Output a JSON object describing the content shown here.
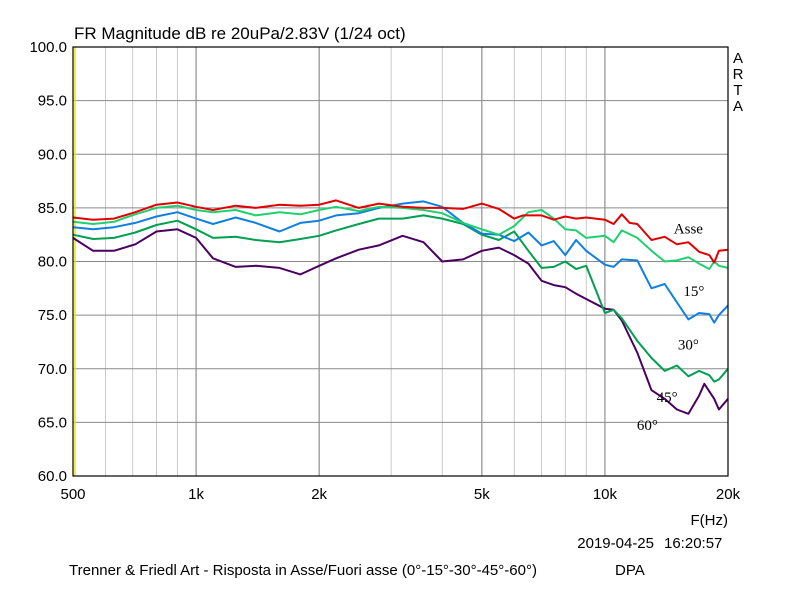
{
  "chart_data": {
    "type": "line",
    "title": "FR Magnitude dB re 20uPa/2.83V (1/24 oct)",
    "xlabel": "F(Hz)",
    "ylabel": "",
    "xscale": "log",
    "xlim": [
      500,
      20000
    ],
    "ylim": [
      60,
      100
    ],
    "grid": true,
    "x_ticks": [
      500,
      1000,
      2000,
      5000,
      10000,
      20000
    ],
    "x_tick_labels": [
      "500",
      "1k",
      "2k",
      "5k",
      "10k",
      "20k"
    ],
    "y_ticks": [
      60,
      65,
      70,
      75,
      80,
      85,
      90,
      95,
      100
    ],
    "y_tick_labels": [
      "60.0",
      "65.0",
      "70.0",
      "75.0",
      "80.0",
      "85.0",
      "90.0",
      "95.0",
      "100.0"
    ],
    "brand": "ARTA",
    "date": "2019-04-25",
    "time": "16:20:57",
    "caption": "Trenner & Friedl Art - Risposta in Asse/Fuori asse (0°-15°-30°-45°-60°)",
    "caption_suffix": "DPA",
    "series": [
      {
        "name": "Asse",
        "color": "#e00000",
        "label_at": [
          16000,
          82.6
        ],
        "points": [
          [
            500,
            84.1
          ],
          [
            560,
            83.9
          ],
          [
            630,
            84.0
          ],
          [
            710,
            84.6
          ],
          [
            800,
            85.3
          ],
          [
            900,
            85.5
          ],
          [
            1000,
            85.1
          ],
          [
            1100,
            84.8
          ],
          [
            1250,
            85.2
          ],
          [
            1400,
            85.0
          ],
          [
            1600,
            85.3
          ],
          [
            1800,
            85.2
          ],
          [
            2000,
            85.3
          ],
          [
            2200,
            85.7
          ],
          [
            2500,
            85.0
          ],
          [
            2800,
            85.4
          ],
          [
            3200,
            85.1
          ],
          [
            3600,
            85.0
          ],
          [
            4000,
            85.0
          ],
          [
            4500,
            84.9
          ],
          [
            5000,
            85.4
          ],
          [
            5500,
            84.9
          ],
          [
            6000,
            84.0
          ],
          [
            6300,
            84.3
          ],
          [
            7000,
            84.3
          ],
          [
            7500,
            83.9
          ],
          [
            8000,
            84.2
          ],
          [
            8500,
            84.0
          ],
          [
            9000,
            84.1
          ],
          [
            10000,
            83.9
          ],
          [
            10500,
            83.5
          ],
          [
            11000,
            84.4
          ],
          [
            11500,
            83.6
          ],
          [
            12000,
            83.5
          ],
          [
            13000,
            82.0
          ],
          [
            14000,
            82.3
          ],
          [
            15000,
            81.6
          ],
          [
            16000,
            81.8
          ],
          [
            17000,
            80.9
          ],
          [
            18000,
            80.6
          ],
          [
            18500,
            79.9
          ],
          [
            19000,
            81.0
          ],
          [
            20000,
            81.1
          ]
        ]
      },
      {
        "name": "15°",
        "color": "#20d070",
        "label_at": [
          16500,
          76.8
        ],
        "points": [
          [
            500,
            83.7
          ],
          [
            560,
            83.5
          ],
          [
            630,
            83.7
          ],
          [
            710,
            84.4
          ],
          [
            800,
            85.0
          ],
          [
            900,
            85.2
          ],
          [
            1000,
            84.8
          ],
          [
            1100,
            84.6
          ],
          [
            1250,
            84.8
          ],
          [
            1400,
            84.3
          ],
          [
            1600,
            84.6
          ],
          [
            1800,
            84.4
          ],
          [
            2000,
            84.8
          ],
          [
            2200,
            85.1
          ],
          [
            2500,
            84.7
          ],
          [
            2800,
            85.1
          ],
          [
            3200,
            85.0
          ],
          [
            3600,
            84.8
          ],
          [
            4000,
            84.5
          ],
          [
            4500,
            83.6
          ],
          [
            5000,
            83.0
          ],
          [
            5500,
            82.5
          ],
          [
            6000,
            83.3
          ],
          [
            6500,
            84.6
          ],
          [
            7000,
            84.8
          ],
          [
            7500,
            84.0
          ],
          [
            8000,
            83.0
          ],
          [
            8500,
            82.9
          ],
          [
            9000,
            82.2
          ],
          [
            10000,
            82.4
          ],
          [
            10500,
            81.8
          ],
          [
            11000,
            82.9
          ],
          [
            12000,
            82.2
          ],
          [
            13000,
            81.0
          ],
          [
            14000,
            80.0
          ],
          [
            15000,
            80.1
          ],
          [
            16000,
            80.4
          ],
          [
            17000,
            79.8
          ],
          [
            18000,
            79.3
          ],
          [
            18500,
            80.0
          ],
          [
            19000,
            79.6
          ],
          [
            20000,
            79.4
          ]
        ]
      },
      {
        "name": "30°",
        "color": "#1080e0",
        "label_at": [
          16000,
          71.8
        ],
        "points": [
          [
            500,
            83.2
          ],
          [
            560,
            83.0
          ],
          [
            630,
            83.2
          ],
          [
            710,
            83.6
          ],
          [
            800,
            84.2
          ],
          [
            900,
            84.6
          ],
          [
            1000,
            84.0
          ],
          [
            1100,
            83.5
          ],
          [
            1250,
            84.1
          ],
          [
            1400,
            83.6
          ],
          [
            1600,
            82.8
          ],
          [
            1800,
            83.6
          ],
          [
            2000,
            83.8
          ],
          [
            2200,
            84.3
          ],
          [
            2500,
            84.5
          ],
          [
            2800,
            85.0
          ],
          [
            3200,
            85.4
          ],
          [
            3600,
            85.6
          ],
          [
            4000,
            85.1
          ],
          [
            4500,
            83.6
          ],
          [
            5000,
            82.6
          ],
          [
            5500,
            82.5
          ],
          [
            6000,
            81.9
          ],
          [
            6500,
            82.7
          ],
          [
            7000,
            81.5
          ],
          [
            7500,
            81.9
          ],
          [
            8000,
            80.6
          ],
          [
            8500,
            82.0
          ],
          [
            9000,
            81.0
          ],
          [
            10000,
            79.7
          ],
          [
            10500,
            79.5
          ],
          [
            11000,
            80.2
          ],
          [
            12000,
            80.1
          ],
          [
            13000,
            77.5
          ],
          [
            14000,
            77.9
          ],
          [
            15000,
            76.2
          ],
          [
            16000,
            74.6
          ],
          [
            17000,
            75.2
          ],
          [
            18000,
            75.1
          ],
          [
            18500,
            74.3
          ],
          [
            19000,
            75.0
          ],
          [
            20000,
            75.9
          ]
        ]
      },
      {
        "name": "45°",
        "color": "#00a050",
        "label_at": [
          14200,
          66.9
        ],
        "points": [
          [
            500,
            82.5
          ],
          [
            560,
            82.1
          ],
          [
            630,
            82.2
          ],
          [
            710,
            82.7
          ],
          [
            800,
            83.4
          ],
          [
            900,
            83.8
          ],
          [
            1000,
            83.0
          ],
          [
            1100,
            82.2
          ],
          [
            1250,
            82.3
          ],
          [
            1400,
            82.0
          ],
          [
            1600,
            81.8
          ],
          [
            1800,
            82.1
          ],
          [
            2000,
            82.4
          ],
          [
            2200,
            82.9
          ],
          [
            2500,
            83.5
          ],
          [
            2800,
            84.0
          ],
          [
            3200,
            84.0
          ],
          [
            3600,
            84.3
          ],
          [
            4000,
            84.0
          ],
          [
            4500,
            83.5
          ],
          [
            5000,
            82.5
          ],
          [
            5500,
            82.0
          ],
          [
            6000,
            82.8
          ],
          [
            6500,
            81.0
          ],
          [
            7000,
            79.4
          ],
          [
            7500,
            79.5
          ],
          [
            8000,
            80.0
          ],
          [
            8500,
            79.3
          ],
          [
            9000,
            79.6
          ],
          [
            10000,
            75.2
          ],
          [
            10500,
            75.5
          ],
          [
            11000,
            74.7
          ],
          [
            12000,
            72.6
          ],
          [
            13000,
            71.0
          ],
          [
            14000,
            69.8
          ],
          [
            15000,
            70.3
          ],
          [
            16000,
            69.3
          ],
          [
            17000,
            69.8
          ],
          [
            18000,
            69.4
          ],
          [
            18500,
            68.8
          ],
          [
            19000,
            69.0
          ],
          [
            20000,
            70.0
          ]
        ]
      },
      {
        "name": "60°",
        "color": "#4a0060",
        "label_at": [
          12700,
          64.3
        ],
        "points": [
          [
            500,
            82.2
          ],
          [
            560,
            81.0
          ],
          [
            630,
            81.0
          ],
          [
            710,
            81.6
          ],
          [
            800,
            82.8
          ],
          [
            900,
            83.0
          ],
          [
            1000,
            82.2
          ],
          [
            1100,
            80.3
          ],
          [
            1250,
            79.5
          ],
          [
            1400,
            79.6
          ],
          [
            1600,
            79.4
          ],
          [
            1800,
            78.8
          ],
          [
            2000,
            79.6
          ],
          [
            2200,
            80.3
          ],
          [
            2500,
            81.1
          ],
          [
            2800,
            81.5
          ],
          [
            3200,
            82.4
          ],
          [
            3600,
            81.8
          ],
          [
            4000,
            80.0
          ],
          [
            4500,
            80.2
          ],
          [
            5000,
            81.0
          ],
          [
            5500,
            81.3
          ],
          [
            6000,
            80.6
          ],
          [
            6500,
            79.8
          ],
          [
            7000,
            78.2
          ],
          [
            7500,
            77.8
          ],
          [
            8000,
            77.6
          ],
          [
            8500,
            77.0
          ],
          [
            9000,
            76.5
          ],
          [
            10000,
            75.6
          ],
          [
            10500,
            75.5
          ],
          [
            11000,
            74.5
          ],
          [
            12000,
            71.5
          ],
          [
            13000,
            68.0
          ],
          [
            14000,
            67.2
          ],
          [
            15000,
            66.2
          ],
          [
            16000,
            65.8
          ],
          [
            17000,
            67.5
          ],
          [
            17500,
            68.6
          ],
          [
            18500,
            67.2
          ],
          [
            19000,
            66.2
          ],
          [
            20000,
            67.2
          ]
        ]
      }
    ]
  }
}
